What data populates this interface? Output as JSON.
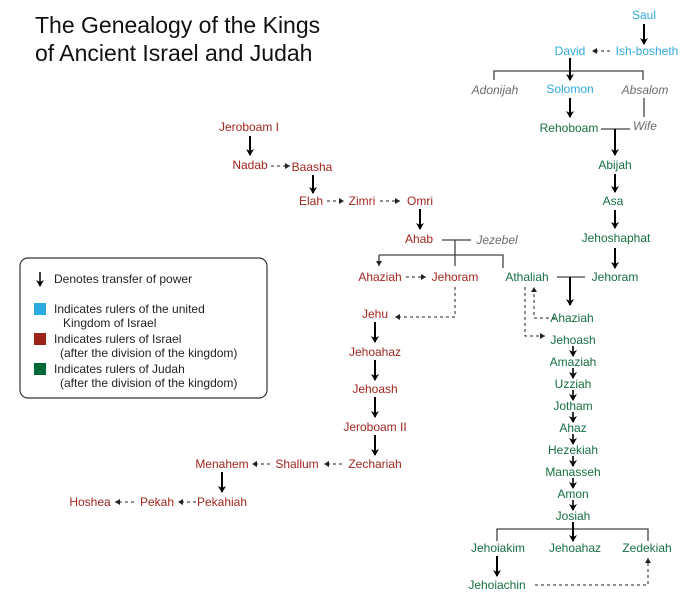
{
  "title": {
    "line1": "The Genealogy of the Kings",
    "line2": "of Ancient Israel and Judah"
  },
  "colors": {
    "united": "#2fa9df",
    "israel": "#a3261f",
    "judah": "#15703f",
    "non_ruler": "#6b6b6b"
  },
  "legend": {
    "arrow_icon": "down-arrow",
    "transfer": "Denotes transfer of power",
    "united_1": "Indicates rulers of the united",
    "united_2": "Kingdom of Israel",
    "israel_1": "Indicates rulers of Israel",
    "israel_2": "(after the division of the kingdom)",
    "judah_1": "Indicates rulers of Judah",
    "judah_2": "(after the division of the kingdom)"
  },
  "people": {
    "united": [
      "Saul",
      "David",
      "Ish-bosheth",
      "Solomon"
    ],
    "non_rulers": [
      "Adonijah",
      "Absalom",
      "Wife",
      "Jezebel"
    ],
    "israel": [
      "Jeroboam I",
      "Nadab",
      "Baasha",
      "Elah",
      "Zimri",
      "Omri",
      "Ahab",
      "Ahaziah",
      "Jehoram",
      "Jehu",
      "Jehoahaz",
      "Jehoash",
      "Jeroboam II",
      "Zechariah",
      "Shallum",
      "Menahem",
      "Pekahiah",
      "Pekah",
      "Hoshea"
    ],
    "judah": [
      "Rehoboam",
      "Abijah",
      "Asa",
      "Jehoshaphat",
      "Jehoram",
      "Athaliah",
      "Ahaziah",
      "Jehoash",
      "Amaziah",
      "Uzziah",
      "Jotham",
      "Ahaz",
      "Hezekiah",
      "Manasseh",
      "Amon",
      "Josiah",
      "Jehoiakim",
      "Jehoahaz",
      "Zedekiah",
      "Jehoiachin"
    ]
  }
}
